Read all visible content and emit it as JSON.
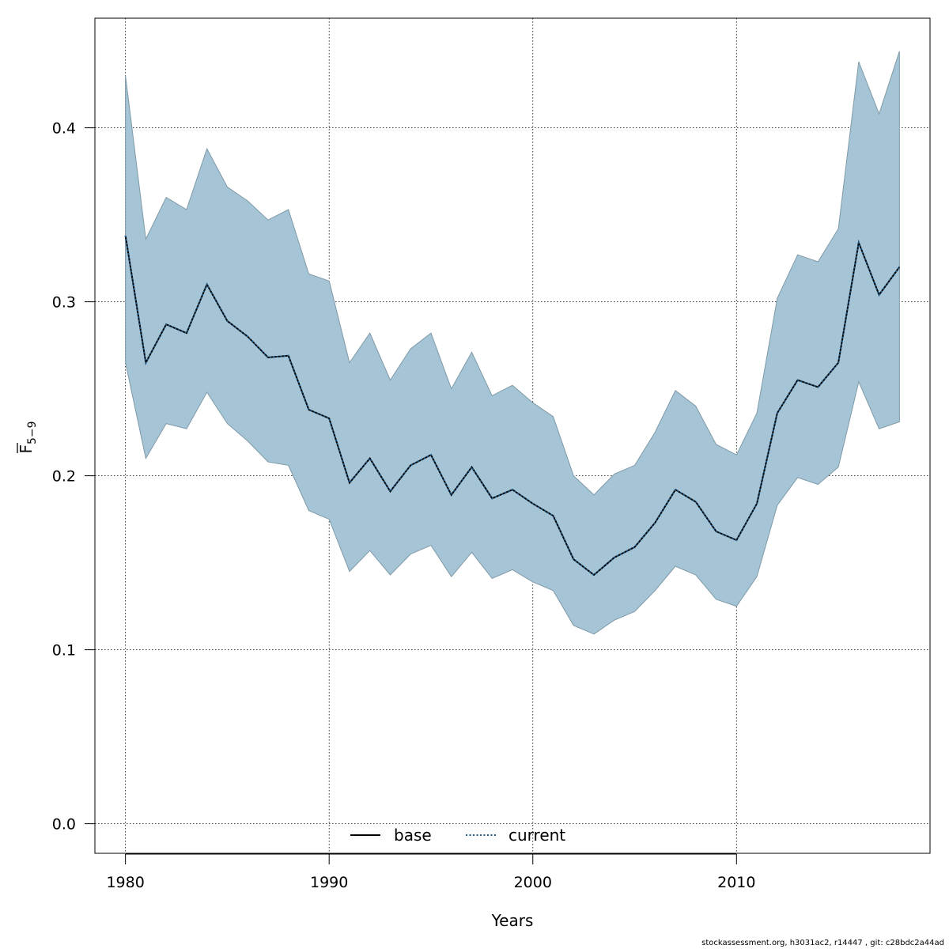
{
  "chart_data": {
    "type": "line",
    "title": "",
    "xlabel": "Years",
    "ylabel_main": "F",
    "ylabel_sub": "5−9",
    "xlim": [
      1978.5,
      2019.5
    ],
    "ylim": [
      -0.017,
      0.463
    ],
    "x_ticks": [
      1980,
      1990,
      2000,
      2010
    ],
    "y_ticks": [
      0.0,
      0.1,
      0.2,
      0.3,
      0.4
    ],
    "x_tick_labels": [
      "1980",
      "1990",
      "2000",
      "2010"
    ],
    "y_tick_labels": [
      "0.0",
      "0.1",
      "0.2",
      "0.3",
      "0.4"
    ],
    "grid": true,
    "legend_position": "bottom-center",
    "x": [
      1980,
      1981,
      1982,
      1983,
      1984,
      1985,
      1986,
      1987,
      1988,
      1989,
      1990,
      1991,
      1992,
      1993,
      1994,
      1995,
      1996,
      1997,
      1998,
      1999,
      2000,
      2001,
      2002,
      2003,
      2004,
      2005,
      2006,
      2007,
      2008,
      2009,
      2010,
      2011,
      2012,
      2013,
      2014,
      2015,
      2016,
      2017,
      2018
    ],
    "band": {
      "color": "#a5c4d5",
      "edge_color": "#7f9aa8",
      "upper": [
        0.43,
        0.336,
        0.36,
        0.353,
        0.388,
        0.366,
        0.358,
        0.347,
        0.353,
        0.316,
        0.312,
        0.265,
        0.282,
        0.255,
        0.273,
        0.282,
        0.25,
        0.271,
        0.246,
        0.252,
        0.242,
        0.234,
        0.2,
        0.189,
        0.201,
        0.206,
        0.225,
        0.249,
        0.24,
        0.218,
        0.212,
        0.236,
        0.302,
        0.327,
        0.323,
        0.342,
        0.438,
        0.408,
        0.444
      ],
      "lower": [
        0.265,
        0.21,
        0.23,
        0.227,
        0.248,
        0.23,
        0.22,
        0.208,
        0.206,
        0.18,
        0.175,
        0.145,
        0.157,
        0.143,
        0.155,
        0.16,
        0.142,
        0.156,
        0.141,
        0.146,
        0.139,
        0.134,
        0.114,
        0.109,
        0.117,
        0.122,
        0.134,
        0.148,
        0.143,
        0.129,
        0.125,
        0.142,
        0.183,
        0.199,
        0.195,
        0.205,
        0.254,
        0.227,
        0.231
      ]
    },
    "series": [
      {
        "name": "base",
        "color": "#000000",
        "dash": "solid",
        "values": [
          0.338,
          0.265,
          0.287,
          0.282,
          0.31,
          0.289,
          0.28,
          0.268,
          0.269,
          0.238,
          0.233,
          0.196,
          0.21,
          0.191,
          0.206,
          0.212,
          0.189,
          0.205,
          0.187,
          0.192,
          0.184,
          0.177,
          0.152,
          0.143,
          0.153,
          0.159,
          0.173,
          0.192,
          0.185,
          0.168,
          0.163,
          0.184,
          0.236,
          0.255,
          0.251,
          0.265,
          0.334,
          0.304,
          0.32
        ]
      },
      {
        "name": "current",
        "color": "#1e5a8a",
        "dash": "dotted",
        "values": [
          0.338,
          0.265,
          0.287,
          0.282,
          0.31,
          0.289,
          0.28,
          0.268,
          0.269,
          0.238,
          0.233,
          0.196,
          0.21,
          0.191,
          0.206,
          0.212,
          0.189,
          0.205,
          0.187,
          0.192,
          0.184,
          0.177,
          0.152,
          0.143,
          0.153,
          0.159,
          0.173,
          0.192,
          0.185,
          0.168,
          0.163,
          0.184,
          0.236,
          0.255,
          0.251,
          0.265,
          0.334,
          0.304,
          0.32
        ]
      }
    ]
  },
  "footer_text": "stockassessment.org, h3031ac2, r14447 , git: c28bdc2a44ad"
}
